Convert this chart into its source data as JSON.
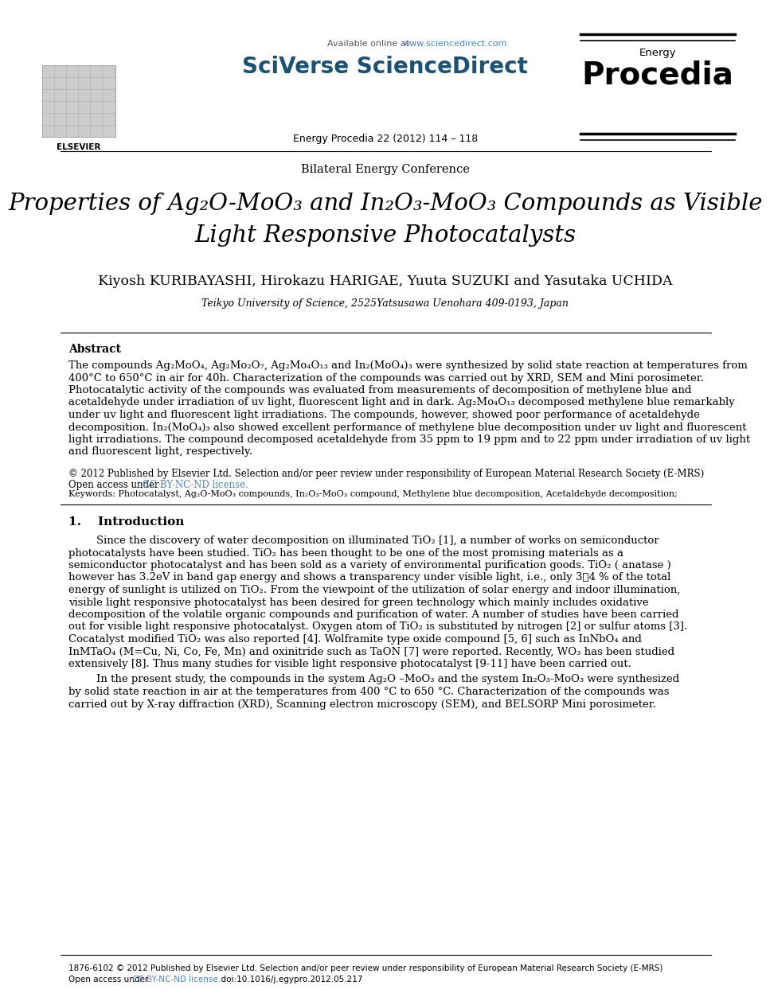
{
  "bg_color": "#ffffff",
  "header_url_color": "#4a86c8",
  "header_brand": "SciVerse ScienceDirect",
  "header_journal_small": "Energy",
  "header_journal_large": "Procedia",
  "header_citation": "Energy Procedia 22 (2012) 114 – 118",
  "conference": "Bilateral Energy Conference",
  "title_line1": "Properties of Ag₂O-MoO₃ and In₂O₃-MoO₃ Compounds as Visible",
  "title_line2": "Light Responsive Photocatalysts",
  "authors": "Kiyosh KURIBAYASHI, Hirokazu HARIGAE, Yuuta SUZUKI and Yasutaka UCHIDA",
  "affiliation": "Teikyo University of Science, 2525Yatsusawa Uenohara 409-0193, Japan",
  "abstract_title": "Abstract",
  "abstract_lines": [
    "The compounds Ag₂MoO₄, Ag₂Mo₂O₇, Ag₂Mo₄O₁₃ and In₂(MoO₄)₃ were synthesized by solid state reaction at temperatures from",
    "400°C to 650°C in air for 40h. Characterization of the compounds was carried out by XRD, SEM and Mini porosimeter.",
    "Photocatalytic activity of the compounds was evaluated from measurements of decomposition of methylene blue and",
    "acetaldehyde under irradiation of uv light, fluorescent light and in dark. Ag₂Mo₄O₁₃ decomposed methylene blue remarkably",
    "under uv light and fluorescent light irradiations. The compounds, however, showed poor performance of acetaldehyde",
    "decomposition. In₂(MoO₄)₃ also showed excellent performance of methylene blue decomposition under uv light and fluorescent",
    "light irradiations. The compound decomposed acetaldehyde from 35 ppm to 19 ppm and to 22 ppm under irradiation of uv light",
    "and fluorescent light, respectively."
  ],
  "copyright_line1": "© 2012 Published by Elsevier Ltd. Selection and/or peer review under responsibility of European Material Research Society (E-MRS)",
  "copyright_line2a": "Open access under ",
  "copyright_line2b": "CC BY-NC-ND license.",
  "copyright_line3": "Keywords: Photocatalyst, Ag₂O-MoO₃ compounds, In₂O₃-MoO₃ compound, Methylene blue decomposition, Acetaldehyde decomposition;",
  "section1_title": "1.    Introduction",
  "intro1_lines": [
    "Since the discovery of water decomposition on illuminated TiO₂ [1], a number of works on semiconductor",
    "photocatalysts have been studied. TiO₂ has been thought to be one of the most promising materials as a",
    "semiconductor photocatalyst and has been sold as a variety of environmental purification goods. TiO₂ ( anatase )",
    "however has 3.2eV in band gap energy and shows a transparency under visible light, i.e., only 3～4 % of the total",
    "energy of sunlight is utilized on TiO₂. From the viewpoint of the utilization of solar energy and indoor illumination,",
    "visible light responsive photocatalyst has been desired for green technology which mainly includes oxidative",
    "decomposition of the volatile organic compounds and purification of water. A number of studies have been carried",
    "out for visible light responsive photocatalyst. Oxygen atom of TiO₂ is substituted by nitrogen [2] or sulfur atoms [3].",
    "Cocatalyst modified TiO₂ was also reported [4]. Wolframite type oxide compound [5, 6] such as InNbO₄ and",
    "InMTaO₄ (M=Cu, Ni, Co, Fe, Mn) and oxinitride such as TaON [7] were reported. Recently, WO₃ has been studied",
    "extensively [8]. Thus many studies for visible light responsive photocatalyst [9-11] have been carried out."
  ],
  "intro2_lines": [
    "In the present study, the compounds in the system Ag₂O –MoO₃ and the system In₂O₃-MoO₃ were synthesized",
    "by solid state reaction in air at the temperatures from 400 °C to 650 °C. Characterization of the compounds was",
    "carried out by X-ray diffraction (XRD), Scanning electron microscopy (SEM), and BELSORP Mini porosimeter."
  ],
  "footer_line1": "1876-6102 © 2012 Published by Elsevier Ltd. Selection and/or peer review under responsibility of European Material Research Society (E-MRS)",
  "footer_line2a": "Open access under ",
  "footer_line2b": "CC BY-NC-ND license.",
  "footer_line2c": "  doi:10.1016/j.egypro.2012.05.217",
  "link_color": "#4a86c8",
  "brand_color": "#1a5276"
}
